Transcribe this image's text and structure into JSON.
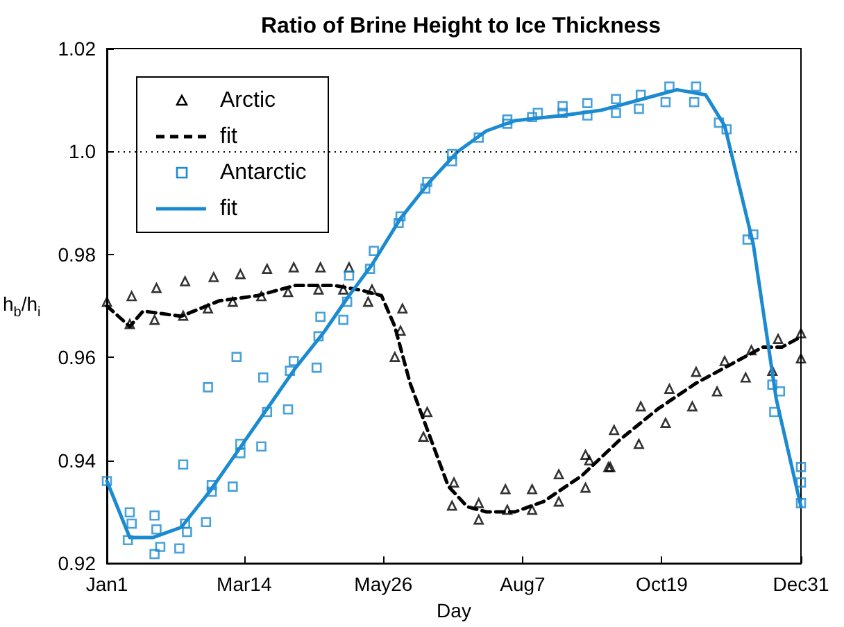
{
  "chart_data": {
    "type": "scatter",
    "title": "Ratio of Brine Height to Ice Thickness",
    "xlabel": "Day",
    "ylabel": "h$_{b}$/h$_{i}$",
    "xlim": [
      "--01-01",
      "--12-31"
    ],
    "xticks": [
      {
        "value": "--01-01",
        "label": "Jan1"
      },
      {
        "value": "--03-14",
        "label": "Mar14"
      },
      {
        "value": "--05-26",
        "label": "May26"
      },
      {
        "value": "--08-07",
        "label": "Aug7"
      },
      {
        "value": "--10-19",
        "label": "Oct19"
      },
      {
        "value": "--12-31",
        "label": "Dec31"
      }
    ],
    "ylim": [
      0.92,
      1.02
    ],
    "yticks": [
      0.92,
      0.94,
      0.96,
      0.98,
      {
        "value": 1.0,
        "label": "1.0"
      },
      1.02
    ],
    "grid": false,
    "legend": "top left",
    "ref_lines": [
      {
        "axis": "y",
        "value": 1.0,
        "color": "#000000",
        "line_style": "dotted"
      }
    ],
    "series": [
      {
        "name": "Arctic",
        "marker": "triangle",
        "color": "#000000",
        "x": [
          "--01-01",
          "--01-13",
          "--01-14",
          "--01-26",
          "--01-27",
          "--02-10",
          "--02-11",
          "--02-23",
          "--02-26",
          "--03-08",
          "--03-12",
          "--03-23",
          "--03-26",
          "--04-06",
          "--04-09",
          "--04-22",
          "--04-23",
          "--05-05",
          "--05-08",
          "--05-18",
          "--05-20",
          "--06-01",
          "--06-04",
          "--06-05",
          "--06-16",
          "--06-18",
          "--07-01",
          "--07-02",
          "--07-15",
          "--07-15",
          "--07-29",
          "--07-30",
          "--08-12",
          "--08-12",
          "--08-26",
          "--08-26",
          "--09-09",
          "--09-09",
          "--09-11",
          "--09-21",
          "--09-22",
          "--09-24",
          "--10-07",
          "--10-08",
          "--10-21",
          "--10-23",
          "--11-04",
          "--11-06",
          "--11-17",
          "--11-21",
          "--12-02",
          "--12-05",
          "--12-16",
          "--12-19",
          "--12-31",
          "--12-31"
        ],
        "values": [
          0.9708,
          0.9665,
          0.9719,
          0.9673,
          0.9735,
          0.9681,
          0.9748,
          0.9695,
          0.9756,
          0.9708,
          0.9762,
          0.9719,
          0.9772,
          0.9727,
          0.9775,
          0.9732,
          0.9775,
          0.9732,
          0.9775,
          0.9708,
          0.9732,
          0.9601,
          0.9652,
          0.9695,
          0.9446,
          0.9494,
          0.9312,
          0.9357,
          0.9285,
          0.9317,
          0.9344,
          0.9304,
          0.9344,
          0.9304,
          0.932,
          0.9373,
          0.9347,
          0.9411,
          0.94,
          0.9387,
          0.9387,
          0.9459,
          0.9432,
          0.9505,
          0.9473,
          0.9539,
          0.9505,
          0.9572,
          0.9534,
          0.9593,
          0.9561,
          0.9614,
          0.9574,
          0.9636,
          0.9598,
          0.9647
        ]
      },
      {
        "name": "fit",
        "type": "line",
        "marker": "none",
        "line_style": "dashed",
        "color": "#000000",
        "x": [
          "--01-01",
          "--01-13",
          "--01-20",
          "--02-09",
          "--03-01",
          "--03-21",
          "--04-10",
          "--04-30",
          "--05-15",
          "--05-25",
          "--06-01",
          "--06-09",
          "--06-19",
          "--06-29",
          "--07-09",
          "--07-19",
          "--08-03",
          "--08-18",
          "--09-07",
          "--09-27",
          "--10-17",
          "--11-06",
          "--11-26",
          "--12-11",
          "--12-21",
          "--12-31"
        ],
        "values": [
          0.97,
          0.966,
          0.969,
          0.968,
          0.971,
          0.972,
          0.974,
          0.974,
          0.973,
          0.972,
          0.966,
          0.955,
          0.945,
          0.935,
          0.931,
          0.93,
          0.93,
          0.932,
          0.937,
          0.944,
          0.95,
          0.955,
          0.959,
          0.962,
          0.962,
          0.964
        ]
      },
      {
        "name": "Antarctic",
        "marker": "square",
        "color": "#1b8ad0",
        "x": [
          "--01-01",
          "--01-12",
          "--01-13",
          "--01-14",
          "--01-26",
          "--01-26",
          "--01-27",
          "--01-29",
          "--02-08",
          "--02-10",
          "--02-11",
          "--02-12",
          "--02-22",
          "--02-23",
          "--02-25",
          "--02-25",
          "--03-08",
          "--03-10",
          "--03-12",
          "--03-12",
          "--03-23",
          "--03-24",
          "--03-26",
          "--04-06",
          "--04-07",
          "--04-09",
          "--04-21",
          "--04-22",
          "--04-23",
          "--05-05",
          "--05-07",
          "--05-08",
          "--05-19",
          "--05-21",
          "--06-03",
          "--06-04",
          "--06-17",
          "--06-18",
          "--07-01",
          "--07-01",
          "--07-15",
          "--07-30",
          "--07-30",
          "--08-12",
          "--08-15",
          "--08-28",
          "--08-28",
          "--09-10",
          "--09-10",
          "--09-25",
          "--09-25",
          "--10-07",
          "--10-08",
          "--10-21",
          "--10-23",
          "--11-05",
          "--11-06",
          "--11-18",
          "--11-22",
          "--12-03",
          "--12-06",
          "--12-16",
          "--12-17",
          "--12-20",
          "--12-31",
          "--12-31",
          "--12-31"
        ],
        "values": [
          0.936,
          0.9245,
          0.9299,
          0.9277,
          0.9293,
          0.9218,
          0.9266,
          0.9232,
          0.9229,
          0.9392,
          0.9277,
          0.9261,
          0.928,
          0.9542,
          0.9352,
          0.9339,
          0.9349,
          0.9601,
          0.9432,
          0.9414,
          0.9427,
          0.9561,
          0.9494,
          0.9499,
          0.9574,
          0.9593,
          0.958,
          0.9641,
          0.9679,
          0.9673,
          0.9708,
          0.9759,
          0.9772,
          0.9807,
          0.9861,
          0.9874,
          0.9928,
          0.9941,
          0.9981,
          0.9995,
          1.0027,
          1.0054,
          1.0062,
          1.0067,
          1.0075,
          1.0075,
          1.0088,
          1.007,
          1.0094,
          1.0075,
          1.0102,
          1.0083,
          1.011,
          1.0096,
          1.0126,
          1.0096,
          1.0126,
          1.0056,
          1.0043,
          0.9829,
          0.9839,
          0.9547,
          0.9494,
          0.9534,
          0.9357,
          0.9387,
          0.9317
        ]
      },
      {
        "name": "fit",
        "type": "line",
        "marker": "none",
        "line_style": "solid",
        "color": "#1b8ad0",
        "x": [
          "--01-01",
          "--01-13",
          "--01-25",
          "--02-09",
          "--02-24",
          "--03-11",
          "--03-26",
          "--04-10",
          "--04-25",
          "--05-08",
          "--05-20",
          "--06-04",
          "--06-19",
          "--07-04",
          "--07-19",
          "--08-03",
          "--08-28",
          "--09-17",
          "--10-07",
          "--10-27",
          "--11-11",
          "--11-21",
          "--12-06",
          "--12-18",
          "--12-31"
        ],
        "values": [
          0.936,
          0.925,
          0.925,
          0.927,
          0.934,
          0.942,
          0.95,
          0.958,
          0.965,
          0.972,
          0.978,
          0.987,
          0.994,
          1.0,
          1.004,
          1.006,
          1.007,
          1.008,
          1.01,
          1.012,
          1.011,
          1.005,
          0.982,
          0.952,
          0.931
        ]
      }
    ]
  }
}
